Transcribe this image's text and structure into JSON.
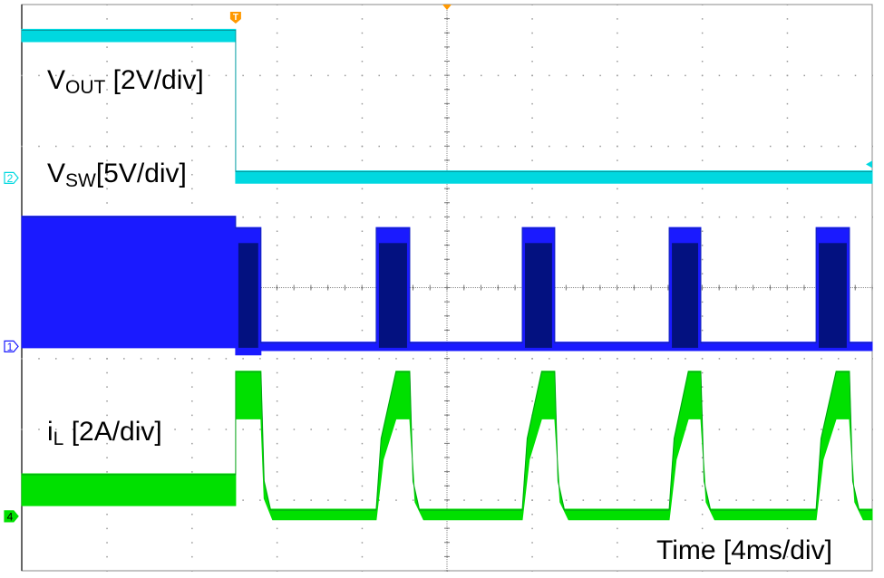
{
  "chart_data": {
    "type": "line",
    "title": "",
    "xlabel": "Time [4ms/div]",
    "x_unit": "ms",
    "xlim": [
      0,
      40
    ],
    "x_divisions": 10,
    "y_divisions": 8,
    "grid": true,
    "trigger_time_ms": 10.06,
    "colors": {
      "vout": "#00d8e0",
      "vsw": "#1a1aff",
      "vsw_dark": "#00106a",
      "il": "#00e000",
      "trigger": "#ff9900"
    },
    "labels": {
      "vout": {
        "main": "V",
        "sub": "OUT",
        "rest": " [2V/div]"
      },
      "vsw": {
        "main": "V",
        "sub": "SW",
        "rest": "[5V/div]"
      },
      "il": {
        "main": "i",
        "sub": "L",
        "rest": " [2A/div]"
      },
      "time": "Time [4ms/div]"
    },
    "markers": {
      "trigger": "T",
      "ch2": "2",
      "ch1": "1",
      "ch4": "4"
    },
    "series": [
      {
        "name": "VOUT",
        "key": "vout",
        "channel": "2",
        "unit": "V",
        "scale_per_div": 2,
        "ground_div": 2.45,
        "upper": [
          [
            0,
            4.2
          ],
          [
            10.06,
            4.2
          ],
          [
            10.06,
            0.2
          ],
          [
            40,
            0.2
          ]
        ],
        "lower": [
          [
            0,
            3.85
          ],
          [
            10.06,
            3.85
          ],
          [
            10.06,
            -0.15
          ],
          [
            40,
            -0.15
          ]
        ]
      },
      {
        "name": "VSW",
        "key": "vsw",
        "channel": "1",
        "unit": "V",
        "scale_per_div": 5,
        "ground_div": 4.83,
        "upper": [
          [
            0,
            9.2
          ],
          [
            10.06,
            9.2
          ],
          [
            10.06,
            8.4
          ],
          [
            11.25,
            8.4
          ],
          [
            11.25,
            0.3
          ],
          [
            16.67,
            0.3
          ],
          [
            16.67,
            8.4
          ],
          [
            18.25,
            8.4
          ],
          [
            18.25,
            0.3
          ],
          [
            23.54,
            0.3
          ],
          [
            23.54,
            8.4
          ],
          [
            25.07,
            8.4
          ],
          [
            25.07,
            0.3
          ],
          [
            30.45,
            0.3
          ],
          [
            30.45,
            8.4
          ],
          [
            31.94,
            8.4
          ],
          [
            31.94,
            0.3
          ],
          [
            37.36,
            0.3
          ],
          [
            37.36,
            8.4
          ],
          [
            38.93,
            8.4
          ],
          [
            38.93,
            0.3
          ],
          [
            40,
            0.3
          ]
        ],
        "lower": [
          [
            0,
            -0.1
          ],
          [
            10.06,
            -0.1
          ],
          [
            10.06,
            -0.6
          ],
          [
            11.25,
            -0.6
          ],
          [
            11.25,
            -0.3
          ],
          [
            40,
            -0.3
          ]
        ],
        "bursts": [
          [
            10.06,
            11.25
          ],
          [
            16.67,
            18.25
          ],
          [
            23.54,
            25.07
          ],
          [
            30.45,
            31.94
          ],
          [
            37.36,
            38.93
          ]
        ]
      },
      {
        "name": "iL",
        "key": "il",
        "channel": "4",
        "unit": "A",
        "scale_per_div": 2,
        "ground_div": 7.23,
        "upper": [
          [
            0,
            1.2
          ],
          [
            10.06,
            1.2
          ],
          [
            10.06,
            4.1
          ],
          [
            11.25,
            4.1
          ],
          [
            11.4,
            1.0
          ],
          [
            11.7,
            0.2
          ],
          [
            16.67,
            0.2
          ],
          [
            16.9,
            2.2
          ],
          [
            17.6,
            4.1
          ],
          [
            18.25,
            4.1
          ],
          [
            18.4,
            1.0
          ],
          [
            18.7,
            0.2
          ],
          [
            23.54,
            0.2
          ],
          [
            23.77,
            2.2
          ],
          [
            24.45,
            4.1
          ],
          [
            25.07,
            4.1
          ],
          [
            25.22,
            1.0
          ],
          [
            25.52,
            0.2
          ],
          [
            30.45,
            0.2
          ],
          [
            30.68,
            2.2
          ],
          [
            31.35,
            4.1
          ],
          [
            31.94,
            4.1
          ],
          [
            32.09,
            1.0
          ],
          [
            32.39,
            0.2
          ],
          [
            37.36,
            0.2
          ],
          [
            37.59,
            2.2
          ],
          [
            38.3,
            4.1
          ],
          [
            38.93,
            4.1
          ],
          [
            39.08,
            1.0
          ],
          [
            39.38,
            0.2
          ],
          [
            40,
            0.2
          ]
        ],
        "lower": [
          [
            0,
            0.3
          ],
          [
            10.06,
            0.3
          ],
          [
            10.06,
            2.75
          ],
          [
            11.25,
            2.75
          ],
          [
            11.4,
            0.5
          ],
          [
            11.8,
            -0.1
          ],
          [
            16.67,
            -0.1
          ],
          [
            17.0,
            1.6
          ],
          [
            17.6,
            2.75
          ],
          [
            18.25,
            2.75
          ],
          [
            18.5,
            0.4
          ],
          [
            18.9,
            -0.1
          ],
          [
            23.54,
            -0.1
          ],
          [
            23.87,
            1.6
          ],
          [
            24.45,
            2.75
          ],
          [
            25.07,
            2.75
          ],
          [
            25.32,
            0.4
          ],
          [
            25.72,
            -0.1
          ],
          [
            30.45,
            -0.1
          ],
          [
            30.78,
            1.6
          ],
          [
            31.35,
            2.75
          ],
          [
            31.94,
            2.75
          ],
          [
            32.19,
            0.4
          ],
          [
            32.59,
            -0.1
          ],
          [
            37.36,
            -0.1
          ],
          [
            37.69,
            1.6
          ],
          [
            38.3,
            2.75
          ],
          [
            38.93,
            2.75
          ],
          [
            39.18,
            0.4
          ],
          [
            39.58,
            -0.1
          ],
          [
            40,
            -0.1
          ]
        ]
      }
    ]
  }
}
